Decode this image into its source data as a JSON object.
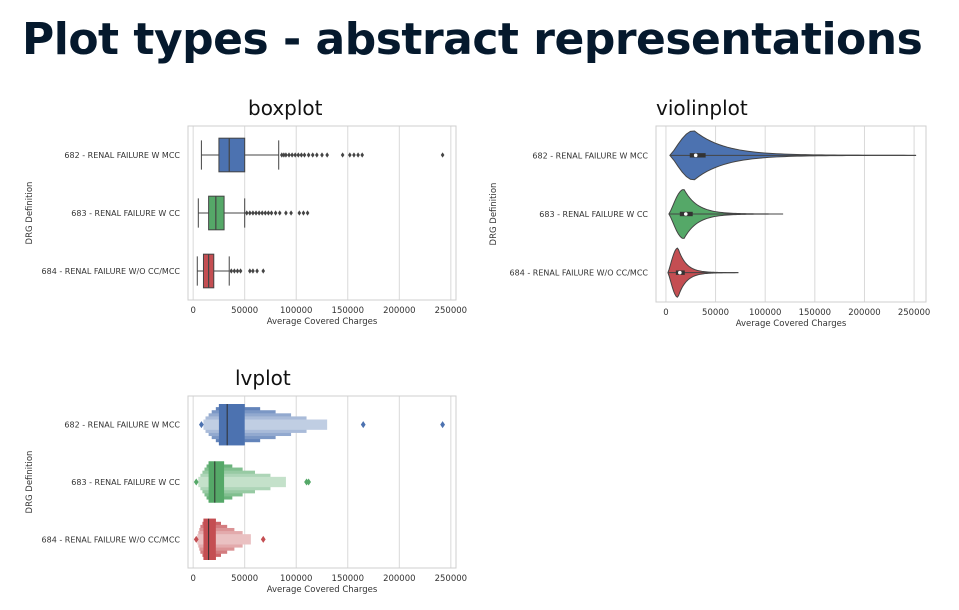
{
  "slide": {
    "title": "Plot types - abstract representations"
  },
  "colors": {
    "blue": "#4c72b0",
    "green": "#55a868",
    "red": "#c44e52",
    "title": "#05192d"
  },
  "chart_data": [
    {
      "type": "box",
      "title": "boxplot",
      "xlabel": "Average Covered Charges",
      "ylabel": "DRG Definition",
      "xlim": [
        -5000,
        255000
      ],
      "xticks": [
        0,
        50000,
        100000,
        150000,
        200000,
        250000
      ],
      "grid": true,
      "categories": [
        "682 - RENAL FAILURE W MCC",
        "683 - RENAL FAILURE W CC",
        "684 - RENAL FAILURE W/O CC/MCC"
      ],
      "series": [
        {
          "color": "#4c72b0",
          "whisker_low": 8000,
          "q1": 25000,
          "median": 35000,
          "q3": 50000,
          "whisker_high": 83000,
          "outliers": [
            86000,
            88000,
            90000,
            93000,
            96000,
            99000,
            102000,
            105000,
            108000,
            112000,
            116000,
            120000,
            125000,
            130000,
            145000,
            152000,
            156000,
            160000,
            164000,
            242000
          ]
        },
        {
          "color": "#55a868",
          "whisker_low": 5000,
          "q1": 15000,
          "median": 22000,
          "q3": 30000,
          "whisker_high": 50000,
          "outliers": [
            52000,
            55000,
            58000,
            61000,
            64000,
            67000,
            70000,
            73000,
            76000,
            80000,
            84000,
            90000,
            95000,
            103000,
            107000,
            111000
          ]
        },
        {
          "color": "#c44e52",
          "whisker_low": 4000,
          "q1": 10000,
          "median": 15000,
          "q3": 20000,
          "whisker_high": 35000,
          "outliers": [
            37000,
            40000,
            43000,
            46000,
            55000,
            58000,
            62000,
            68000
          ]
        }
      ]
    },
    {
      "type": "violin",
      "title": "violinplot",
      "xlabel": "Average Covered Charges",
      "ylabel": "DRG Definition",
      "xlim": [
        -10000,
        262000
      ],
      "xticks": [
        0,
        50000,
        100000,
        150000,
        200000,
        250000
      ],
      "grid": true,
      "categories": [
        "682 - RENAL FAILURE W MCC",
        "683 - RENAL FAILURE W CC",
        "684 - RENAL FAILURE W/O CC/MCC"
      ],
      "series": [
        {
          "color": "#4c72b0",
          "min": 4000,
          "max": 252000,
          "mode": 28000,
          "q1": 24000,
          "median": 30000,
          "q3": 40000
        },
        {
          "color": "#55a868",
          "min": 3000,
          "max": 118000,
          "mode": 18000,
          "q1": 14000,
          "median": 20000,
          "q3": 27000
        },
        {
          "color": "#c44e52",
          "min": 2000,
          "max": 73000,
          "mode": 12000,
          "q1": 10000,
          "median": 14000,
          "q3": 19000
        }
      ]
    },
    {
      "type": "boxen",
      "title": "lvplot",
      "xlabel": "Average Covered Charges",
      "ylabel": "DRG Definition",
      "xlim": [
        -5000,
        255000
      ],
      "xticks": [
        0,
        50000,
        100000,
        150000,
        200000,
        250000
      ],
      "grid": true,
      "categories": [
        "682 - RENAL FAILURE W MCC",
        "683 - RENAL FAILURE W CC",
        "684 - RENAL FAILURE W/O CC/MCC"
      ],
      "series": [
        {
          "color": "#4c72b0",
          "median": 33000,
          "boxes": [
            [
              25000,
              50000
            ],
            [
              22000,
              65000
            ],
            [
              18000,
              80000
            ],
            [
              15000,
              95000
            ],
            [
              12000,
              110000
            ],
            [
              10000,
              130000
            ]
          ],
          "outliers": [
            8000,
            165000,
            242000
          ]
        },
        {
          "color": "#55a868",
          "median": 21000,
          "boxes": [
            [
              15000,
              30000
            ],
            [
              13000,
              38000
            ],
            [
              11000,
              48000
            ],
            [
              9000,
              60000
            ],
            [
              7000,
              75000
            ],
            [
              5000,
              90000
            ]
          ],
          "outliers": [
            3000,
            110000,
            112000
          ]
        },
        {
          "color": "#c44e52",
          "median": 15000,
          "boxes": [
            [
              10000,
              22000
            ],
            [
              9000,
              27000
            ],
            [
              7000,
              33000
            ],
            [
              6000,
              40000
            ],
            [
              5000,
              48000
            ],
            [
              4000,
              56000
            ]
          ],
          "outliers": [
            3000,
            68000
          ]
        }
      ]
    }
  ]
}
